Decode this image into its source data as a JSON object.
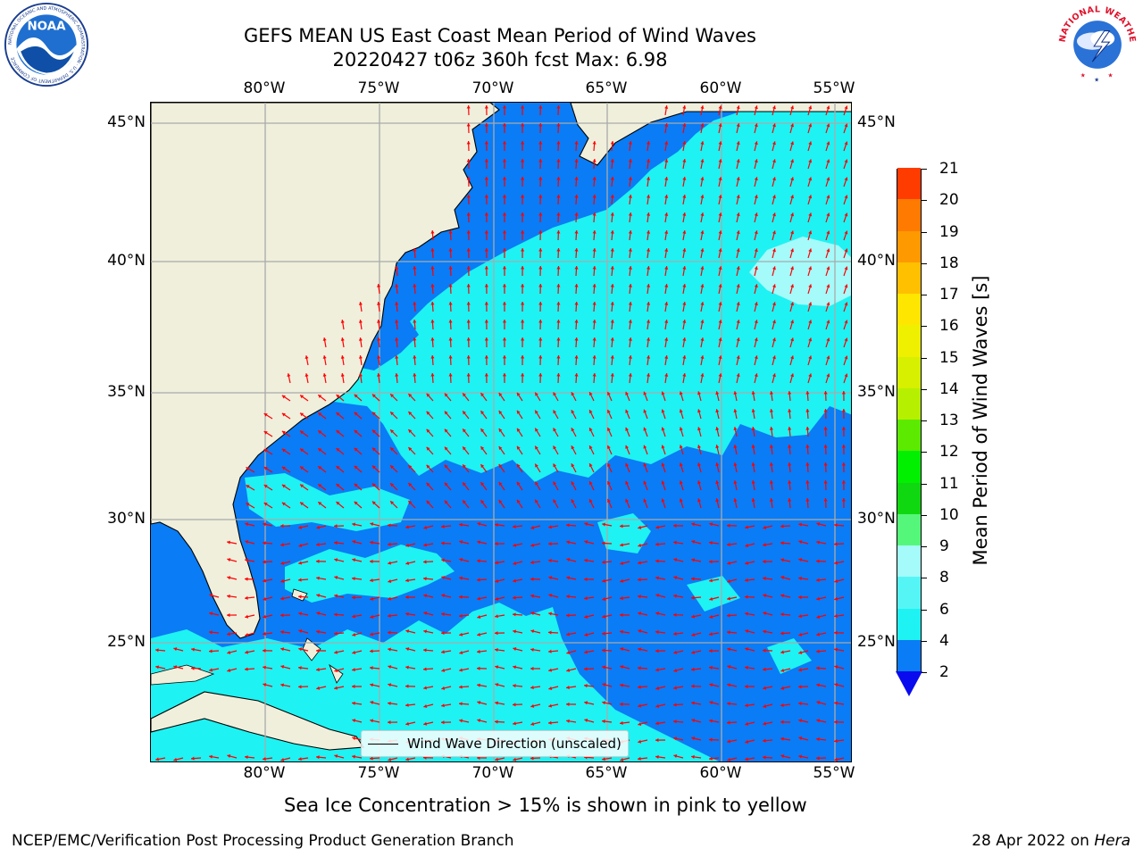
{
  "header": {
    "title_line1": "GEFS MEAN US East Coast Mean Period of Wind Waves",
    "title_line2": "20220427 t06z 360h fcst   Max: 6.98"
  },
  "logos": {
    "noaa": "NOAA",
    "noaa_ring": "NATIONAL OCEANIC AND ATMOSPHERIC ADMINISTRATION · U.S. DEPARTMENT OF COMMERCE",
    "nws_ring": "NATIONAL WEATHER SERVICE"
  },
  "map": {
    "lon_labels": [
      "80°W",
      "75°W",
      "70°W",
      "65°W",
      "60°W",
      "55°W"
    ],
    "lat_labels": [
      "45°N",
      "40°N",
      "35°N",
      "30°N",
      "25°N"
    ],
    "legend": "Wind Wave Direction (unscaled)",
    "colors": {
      "land": "#efefdc",
      "ocean_2_4": "#0a7cf5",
      "ocean_4_6": "#1ff2f2",
      "ocean_6_8": "#56f5f5",
      "ocean_8_9": "#a5fafa",
      "grid": "#aaaaaa",
      "arrow": "#ff0000"
    }
  },
  "colorbar": {
    "label": "Mean Period of Wind Waves [s]",
    "ticks": [
      "2",
      "4",
      "6",
      "8",
      "9",
      "10",
      "11",
      "12",
      "13",
      "14",
      "15",
      "16",
      "17",
      "18",
      "19",
      "20",
      "21"
    ],
    "colors": [
      "#0a7cf5",
      "#1ff2f2",
      "#56f5f5",
      "#a5fafa",
      "#55f77a",
      "#10d810",
      "#00f000",
      "#5bea00",
      "#b6f000",
      "#d6f000",
      "#eef000",
      "#ffe600",
      "#ffc000",
      "#ff9900",
      "#ff7a00",
      "#ff3c00",
      "#ff0000"
    ],
    "under_color": "#0a0aee"
  },
  "footnote": "Sea Ice Concentration > 15% is shown in pink to yellow",
  "credit_left": "NCEP/EMC/Verification Post Processing Product Generation Branch",
  "credit_right_date": "28 Apr 2022 on",
  "credit_right_host": "Hera"
}
